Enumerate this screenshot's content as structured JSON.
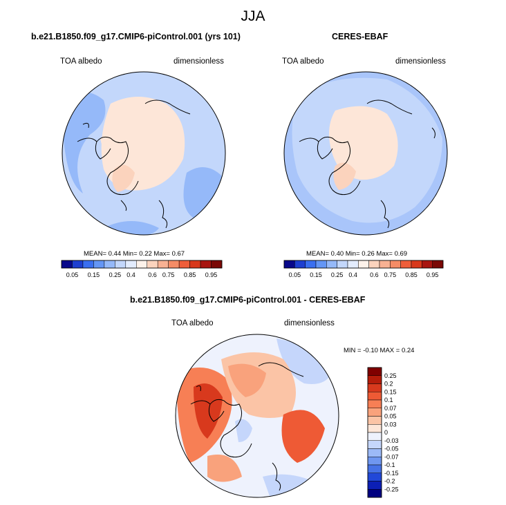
{
  "page": {
    "title": "JJA"
  },
  "chart_data": [
    {
      "type": "heatmap",
      "title": "b.e21.B1850.f09_g17.CMIP6-piControl.001 (yrs 101)",
      "left_label": "TOA albedo",
      "right_label": "dimensionless",
      "stats": {
        "mean_label": "MEAN=",
        "mean": "0.44",
        "min_label": "Min=",
        "min": "0.22",
        "max_label": "Max=",
        "max": "0.67"
      },
      "colorbar_ticks": [
        "0.05",
        "0.15",
        "0.25",
        "0.4",
        "0.6",
        "0.75",
        "0.85",
        "0.95"
      ],
      "colorbar_colors": [
        "#08088a",
        "#1e3fd0",
        "#3a6ff0",
        "#6496f5",
        "#95b9f9",
        "#c3d7fb",
        "#e3ecfd",
        "#fdf2ea",
        "#fbd3bd",
        "#f8b193",
        "#f58c66",
        "#ef5e3a",
        "#d8381b",
        "#a81510",
        "#7a0805"
      ],
      "colorbar_orientation": "horizontal"
    },
    {
      "type": "heatmap",
      "title": "CERES-EBAF",
      "left_label": "TOA albedo",
      "right_label": "dimensionless",
      "stats": {
        "mean_label": "MEAN=",
        "mean": "0.40",
        "min_label": "Min=",
        "min": "0.26",
        "max_label": "Max=",
        "max": "0.69"
      },
      "colorbar_ticks": [
        "0.05",
        "0.15",
        "0.25",
        "0.4",
        "0.6",
        "0.75",
        "0.85",
        "0.95"
      ],
      "colorbar_colors": [
        "#08088a",
        "#1e3fd0",
        "#3a6ff0",
        "#6496f5",
        "#95b9f9",
        "#c3d7fb",
        "#e3ecfd",
        "#fdf2ea",
        "#fbd3bd",
        "#f8b193",
        "#f58c66",
        "#ef5e3a",
        "#d8381b",
        "#a81510",
        "#7a0805"
      ],
      "colorbar_orientation": "horizontal"
    },
    {
      "type": "heatmap",
      "title": "b.e21.B1850.f09_g17.CMIP6-piControl.001 - CERES-EBAF",
      "left_label": "TOA albedo",
      "right_label": "dimensionless",
      "stats": {
        "min_label": "MIN =",
        "min": "-0.10",
        "max_label": "MAX =",
        "max": "0.24"
      },
      "colorbar_ticks": [
        "0.25",
        "0.2",
        "0.15",
        "0.1",
        "0.07",
        "0.05",
        "0.03",
        "0",
        "-0.03",
        "-0.05",
        "-0.07",
        "-0.1",
        "-0.15",
        "-0.2",
        "-0.25"
      ],
      "colorbar_colors": [
        "#800000",
        "#b51c0a",
        "#d8391d",
        "#ee5a35",
        "#f77f55",
        "#f9a27c",
        "#fbc4a6",
        "#fde6d8",
        "#eef2fd",
        "#c5d6fb",
        "#9cbaf7",
        "#6f97f0",
        "#4672e6",
        "#2148d8",
        "#0c1fb5",
        "#000080"
      ],
      "colorbar_orientation": "vertical"
    }
  ]
}
